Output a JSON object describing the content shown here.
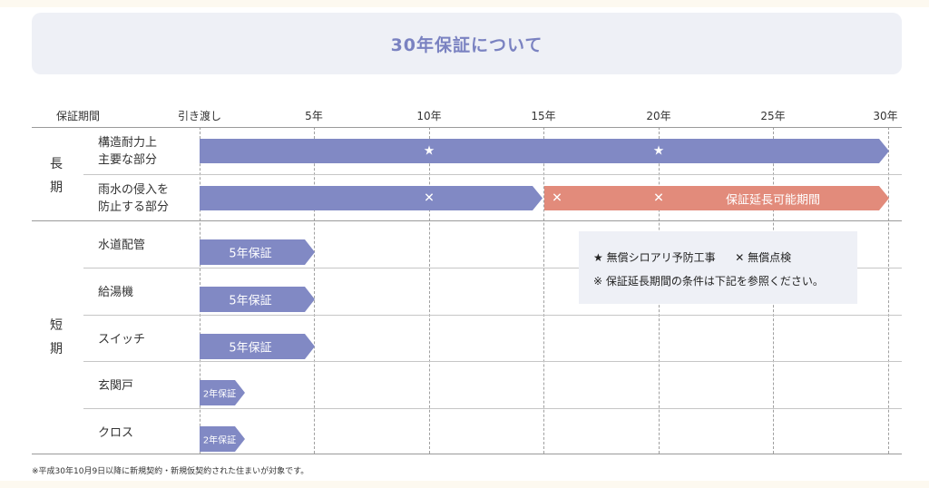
{
  "title": "30年保証について",
  "axis": {
    "label": "保証期間",
    "ticks": [
      "引き渡し",
      "5年",
      "10年",
      "15年",
      "20年",
      "25年",
      "30年"
    ]
  },
  "groups": {
    "long": [
      "長",
      "期"
    ],
    "short": [
      "短",
      "期"
    ]
  },
  "rows": {
    "structure": [
      "構造耐力上",
      "主要な部分"
    ],
    "rain": [
      "雨水の侵入を",
      "防止する部分"
    ],
    "water_pipe": "水道配管",
    "water_heater": "給湯機",
    "switch": "スイッチ",
    "entrance_door": "玄関戸",
    "cloth": "クロス"
  },
  "bars": {
    "five_year_label": "5年保証",
    "two_year_label": "2年保証",
    "extension_label": "保証延長可能期間",
    "star_glyph": "★",
    "tool_glyph": "✕"
  },
  "legend": {
    "star_item": "★ 無償シロアリ予防工事",
    "tool_item": "✕ 無償点検",
    "note": "※ 保証延長期間の条件は下記を参照ください。"
  },
  "footnote": "※平成30年10月9日以降に新規契約・新規仮契約された住まいが対象です。",
  "colors": {
    "accent": "#8189c4",
    "extension": "#e28b7b",
    "title": "#7a82c1",
    "panel": "#eef0f6"
  }
}
